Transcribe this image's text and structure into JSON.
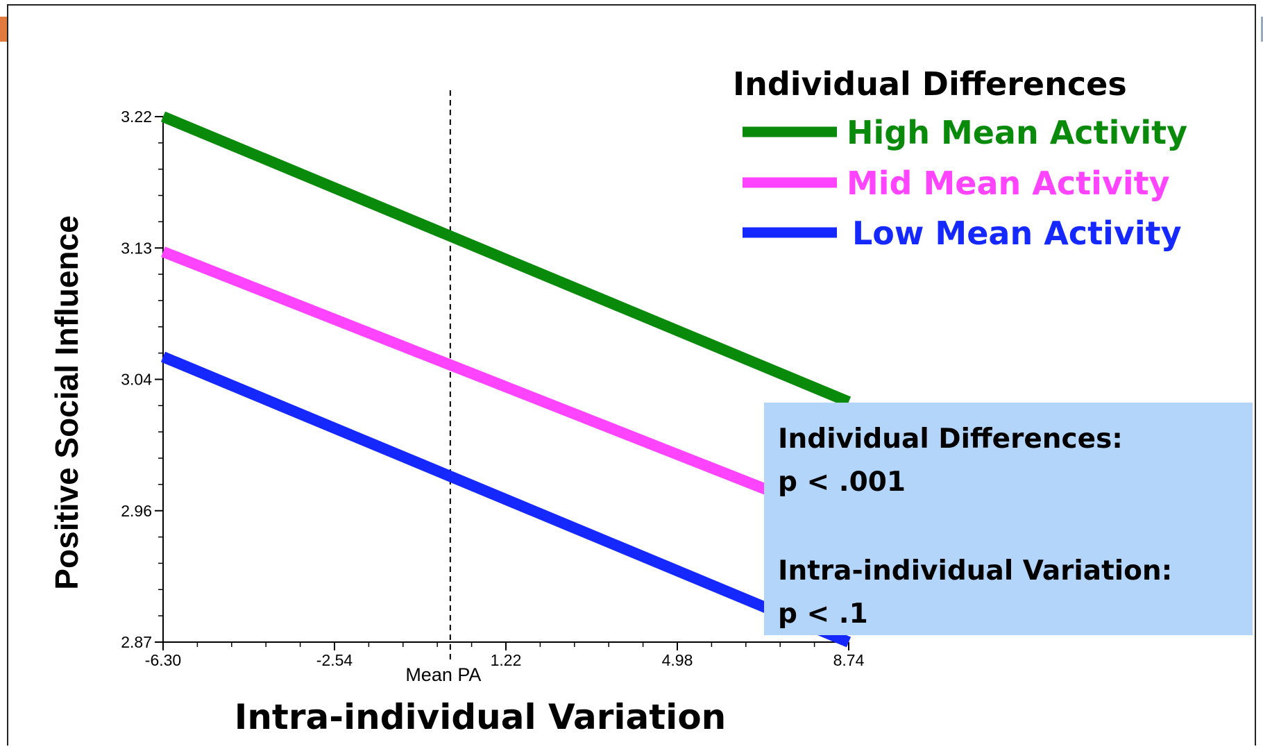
{
  "chart_data": {
    "type": "line",
    "title": "",
    "xlabel": "Intra-individual Variation",
    "ylabel": "Positive Social Influence",
    "xlim": [
      -6.3,
      8.74
    ],
    "ylim": [
      2.87,
      3.22
    ],
    "x_ticks": [
      "-6.30",
      "-2.54",
      "1.22",
      "4.98",
      "8.74"
    ],
    "y_ticks": [
      "2.87",
      "2.96",
      "3.04",
      "3.13",
      "3.22"
    ],
    "reference_line": {
      "x": 0.0,
      "label": "Mean PA",
      "style": "dashed"
    },
    "legend": {
      "title": "Individual Differences",
      "placement": "top-right"
    },
    "series": [
      {
        "name": "High Mean Activity",
        "color": "#0a8a0a",
        "x": [
          -6.3,
          8.74
        ],
        "y": [
          3.22,
          3.03
        ]
      },
      {
        "name": "Mid Mean Activity",
        "color": "#ff44ff",
        "x": [
          -6.3,
          8.74
        ],
        "y": [
          3.13,
          2.95
        ]
      },
      {
        "name": "Low Mean Activity",
        "color": "#1428ff",
        "x": [
          -6.3,
          8.74
        ],
        "y": [
          3.06,
          2.87
        ]
      }
    ]
  },
  "stats_box": {
    "line1_label": "Individual Differences:",
    "line1_value": "p < .001",
    "line2_label": "Intra-individual Variation:",
    "line2_value": "p < .1"
  }
}
